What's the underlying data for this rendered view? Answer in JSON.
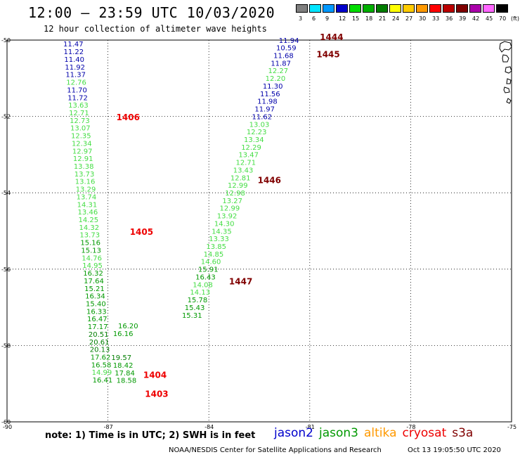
{
  "header": {
    "title": "12:00 – 23:59 UTC 10/03/2020",
    "subtitle": "12 hour collection of altimeter wave heights"
  },
  "color_scale": {
    "unit_label": "(ft)",
    "bins": [
      {
        "label": "3",
        "color": "#7f7f7f"
      },
      {
        "label": "6",
        "color": "#00e5ff"
      },
      {
        "label": "9",
        "color": "#0099ff"
      },
      {
        "label": "12",
        "color": "#0000cc"
      },
      {
        "label": "15",
        "color": "#00dd00"
      },
      {
        "label": "18",
        "color": "#00b000"
      },
      {
        "label": "21",
        "color": "#007d00"
      },
      {
        "label": "24",
        "color": "#ffff00"
      },
      {
        "label": "27",
        "color": "#ffcc00"
      },
      {
        "label": "30",
        "color": "#ff9900"
      },
      {
        "label": "33",
        "color": "#ff0000"
      },
      {
        "label": "36",
        "color": "#bb0000"
      },
      {
        "label": "39",
        "color": "#800000"
      },
      {
        "label": "42",
        "color": "#aa00aa"
      },
      {
        "label": "45",
        "color": "#ff66ff"
      },
      {
        "label": "70",
        "color": "#000000"
      }
    ]
  },
  "map": {
    "lat_ticks": [
      "-50",
      "-52",
      "-54",
      "-56",
      "-58",
      "-60"
    ],
    "lon_ticks": [
      "-90",
      "-87",
      "-84",
      "-81",
      "-78",
      "-75"
    ],
    "tracks": [
      {
        "name": "pass-1406-1403",
        "points": [
          {
            "lon": -88.03,
            "lat": -50.17,
            "v": "11.47",
            "c": "#0000aa"
          },
          {
            "lon": -88.02,
            "lat": -50.37,
            "v": "11.22",
            "c": "#0000aa"
          },
          {
            "lon": -88.0,
            "lat": -50.57,
            "v": "11.40",
            "c": "#0000aa"
          },
          {
            "lon": -87.98,
            "lat": -50.77,
            "v": "11.92",
            "c": "#0000aa"
          },
          {
            "lon": -87.96,
            "lat": -50.97,
            "v": "11.37",
            "c": "#0000aa"
          },
          {
            "lon": -87.94,
            "lat": -51.17,
            "v": "12.76",
            "c": "#44dd44"
          },
          {
            "lon": -87.92,
            "lat": -51.37,
            "v": "11.70",
            "c": "#0000aa"
          },
          {
            "lon": -87.9,
            "lat": -51.57,
            "v": "11.72",
            "c": "#0000aa"
          },
          {
            "lon": -87.88,
            "lat": -51.77,
            "v": "13.63",
            "c": "#44dd44"
          },
          {
            "lon": -87.86,
            "lat": -51.97,
            "v": "12.71",
            "c": "#44dd44"
          },
          {
            "lon": -87.84,
            "lat": -52.17,
            "v": "12.73",
            "c": "#44dd44"
          },
          {
            "lon": -87.82,
            "lat": -52.37,
            "v": "13.07",
            "c": "#44dd44"
          },
          {
            "lon": -87.8,
            "lat": -52.57,
            "v": "12.35",
            "c": "#44dd44"
          },
          {
            "lon": -87.78,
            "lat": -52.77,
            "v": "12.34",
            "c": "#44dd44"
          },
          {
            "lon": -87.76,
            "lat": -52.97,
            "v": "12.97",
            "c": "#44dd44"
          },
          {
            "lon": -87.74,
            "lat": -53.17,
            "v": "12.91",
            "c": "#44dd44"
          },
          {
            "lon": -87.72,
            "lat": -53.37,
            "v": "13.38",
            "c": "#44dd44"
          },
          {
            "lon": -87.7,
            "lat": -53.57,
            "v": "13.73",
            "c": "#44dd44"
          },
          {
            "lon": -87.68,
            "lat": -53.77,
            "v": "13.16",
            "c": "#44dd44"
          },
          {
            "lon": -87.66,
            "lat": -53.97,
            "v": "13.29",
            "c": "#44dd44"
          },
          {
            "lon": -87.64,
            "lat": -54.17,
            "v": "13.74",
            "c": "#44dd44"
          },
          {
            "lon": -87.62,
            "lat": -54.37,
            "v": "14.31",
            "c": "#44dd44"
          },
          {
            "lon": -87.6,
            "lat": -54.57,
            "v": "13.46",
            "c": "#44dd44"
          },
          {
            "lon": -87.58,
            "lat": -54.77,
            "v": "14.25",
            "c": "#44dd44"
          },
          {
            "lon": -87.56,
            "lat": -54.97,
            "v": "14.32",
            "c": "#44dd44"
          },
          {
            "lon": -87.54,
            "lat": -55.17,
            "v": "13.73",
            "c": "#44dd44"
          },
          {
            "lon": -87.52,
            "lat": -55.37,
            "v": "15.16",
            "c": "#009900"
          },
          {
            "lon": -87.5,
            "lat": -55.57,
            "v": "15.13",
            "c": "#009900"
          },
          {
            "lon": -87.48,
            "lat": -55.77,
            "v": "14.76",
            "c": "#44dd44"
          },
          {
            "lon": -87.46,
            "lat": -55.97,
            "v": "14.95",
            "c": "#44dd44"
          },
          {
            "lon": -87.44,
            "lat": -56.17,
            "v": "16.32",
            "c": "#009900"
          },
          {
            "lon": -87.42,
            "lat": -56.37,
            "v": "17.64",
            "c": "#009900"
          },
          {
            "lon": -87.4,
            "lat": -56.57,
            "v": "15.21",
            "c": "#009900"
          },
          {
            "lon": -87.38,
            "lat": -56.77,
            "v": "16.34",
            "c": "#009900"
          },
          {
            "lon": -87.36,
            "lat": -56.97,
            "v": "15.40",
            "c": "#009900"
          },
          {
            "lon": -87.34,
            "lat": -57.17,
            "v": "16.33",
            "c": "#009900"
          },
          {
            "lon": -87.32,
            "lat": -57.37,
            "v": "16.47",
            "c": "#009900"
          },
          {
            "lon": -87.3,
            "lat": -57.57,
            "v": "17.17",
            "c": "#009900"
          },
          {
            "lon": -87.28,
            "lat": -57.77,
            "v": "20.51",
            "c": "#007d00"
          },
          {
            "lon": -87.26,
            "lat": -57.97,
            "v": "20.61",
            "c": "#007d00"
          },
          {
            "lon": -87.24,
            "lat": -58.17,
            "v": "20.13",
            "c": "#007d00"
          },
          {
            "lon": -87.22,
            "lat": -58.37,
            "v": "17.62",
            "c": "#009900"
          },
          {
            "lon": -87.2,
            "lat": -58.57,
            "v": "16.58",
            "c": "#009900"
          },
          {
            "lon": -87.18,
            "lat": -58.77,
            "v": "14.99",
            "c": "#44dd44"
          },
          {
            "lon": -87.16,
            "lat": -58.97,
            "v": "16.41",
            "c": "#009900"
          }
        ]
      },
      {
        "name": "pass-1404-1403-inner",
        "points": [
          {
            "lon": -86.4,
            "lat": -57.55,
            "v": "16.20",
            "c": "#009900"
          },
          {
            "lon": -86.55,
            "lat": -57.75,
            "v": "16.16",
            "c": "#009900"
          },
          {
            "lon": -86.6,
            "lat": -58.38,
            "v": "19.57",
            "c": "#007d00"
          },
          {
            "lon": -86.55,
            "lat": -58.58,
            "v": "18.42",
            "c": "#009900"
          },
          {
            "lon": -86.5,
            "lat": -58.78,
            "v": "17.84",
            "c": "#009900"
          },
          {
            "lon": -86.45,
            "lat": -58.98,
            "v": "18.58",
            "c": "#009900"
          }
        ]
      },
      {
        "name": "pass-1444-1447",
        "points": [
          {
            "lon": -81.62,
            "lat": -50.07,
            "v": "11.94",
            "c": "#0000aa"
          },
          {
            "lon": -81.7,
            "lat": -50.27,
            "v": "10.59",
            "c": "#0000aa"
          },
          {
            "lon": -81.78,
            "lat": -50.47,
            "v": "11.68",
            "c": "#0000aa"
          },
          {
            "lon": -81.86,
            "lat": -50.67,
            "v": "11.87",
            "c": "#0000aa"
          },
          {
            "lon": -81.94,
            "lat": -50.87,
            "v": "12.27",
            "c": "#44dd44"
          },
          {
            "lon": -82.02,
            "lat": -51.07,
            "v": "12.20",
            "c": "#44dd44"
          },
          {
            "lon": -82.1,
            "lat": -51.27,
            "v": "11.30",
            "c": "#0000aa"
          },
          {
            "lon": -82.18,
            "lat": -51.47,
            "v": "11.56",
            "c": "#0000aa"
          },
          {
            "lon": -82.26,
            "lat": -51.67,
            "v": "11.98",
            "c": "#0000aa"
          },
          {
            "lon": -82.34,
            "lat": -51.87,
            "v": "11.97",
            "c": "#0000aa"
          },
          {
            "lon": -82.42,
            "lat": -52.07,
            "v": "11.62",
            "c": "#0000aa"
          },
          {
            "lon": -82.5,
            "lat": -52.27,
            "v": "13.03",
            "c": "#44dd44"
          },
          {
            "lon": -82.58,
            "lat": -52.47,
            "v": "12.23",
            "c": "#44dd44"
          },
          {
            "lon": -82.66,
            "lat": -52.67,
            "v": "13.34",
            "c": "#44dd44"
          },
          {
            "lon": -82.74,
            "lat": -52.87,
            "v": "12.29",
            "c": "#44dd44"
          },
          {
            "lon": -82.82,
            "lat": -53.07,
            "v": "13.47",
            "c": "#44dd44"
          },
          {
            "lon": -82.9,
            "lat": -53.27,
            "v": "12.71",
            "c": "#44dd44"
          },
          {
            "lon": -82.98,
            "lat": -53.47,
            "v": "13.43",
            "c": "#44dd44"
          },
          {
            "lon": -83.06,
            "lat": -53.67,
            "v": "12.81",
            "c": "#44dd44"
          },
          {
            "lon": -83.14,
            "lat": -53.87,
            "v": "12.99",
            "c": "#44dd44"
          },
          {
            "lon": -83.22,
            "lat": -54.07,
            "v": "12.98",
            "c": "#44dd44"
          },
          {
            "lon": -83.3,
            "lat": -54.27,
            "v": "13.27",
            "c": "#44dd44"
          },
          {
            "lon": -83.38,
            "lat": -54.47,
            "v": "12.99",
            "c": "#44dd44"
          },
          {
            "lon": -83.46,
            "lat": -54.67,
            "v": "13.92",
            "c": "#44dd44"
          },
          {
            "lon": -83.54,
            "lat": -54.87,
            "v": "14.30",
            "c": "#44dd44"
          },
          {
            "lon": -83.62,
            "lat": -55.07,
            "v": "14.35",
            "c": "#44dd44"
          },
          {
            "lon": -83.7,
            "lat": -55.27,
            "v": "13.33",
            "c": "#44dd44"
          },
          {
            "lon": -83.78,
            "lat": -55.47,
            "v": "13.85",
            "c": "#44dd44"
          },
          {
            "lon": -83.86,
            "lat": -55.67,
            "v": "14.85",
            "c": "#44dd44"
          },
          {
            "lon": -83.94,
            "lat": -55.87,
            "v": "14.60",
            "c": "#44dd44"
          },
          {
            "lon": -84.02,
            "lat": -56.07,
            "v": "15.91",
            "c": "#009900"
          },
          {
            "lon": -84.1,
            "lat": -56.27,
            "v": "16.43",
            "c": "#009900"
          },
          {
            "lon": -84.18,
            "lat": -56.47,
            "v": "14.08",
            "c": "#44dd44"
          },
          {
            "lon": -84.26,
            "lat": -56.67,
            "v": "14.13",
            "c": "#44dd44"
          },
          {
            "lon": -84.34,
            "lat": -56.87,
            "v": "15.78",
            "c": "#009900"
          },
          {
            "lon": -84.42,
            "lat": -57.07,
            "v": "15.43",
            "c": "#009900"
          },
          {
            "lon": -84.5,
            "lat": -57.27,
            "v": "15.31",
            "c": "#009900"
          }
        ]
      }
    ],
    "pass_labels": [
      {
        "text": "1444",
        "lon": -80.7,
        "lat": -50.0,
        "c": "#800000"
      },
      {
        "text": "1445",
        "lon": -80.8,
        "lat": -50.45,
        "c": "#800000"
      },
      {
        "text": "1406",
        "lon": -86.75,
        "lat": -52.1,
        "c": "#ee0000"
      },
      {
        "text": "1446",
        "lon": -82.55,
        "lat": -53.75,
        "c": "#800000"
      },
      {
        "text": "1405",
        "lon": -86.35,
        "lat": -55.1,
        "c": "#ee0000"
      },
      {
        "text": "1447",
        "lon": -83.4,
        "lat": -56.4,
        "c": "#800000"
      },
      {
        "text": "1404",
        "lon": -85.95,
        "lat": -58.85,
        "c": "#ee0000"
      },
      {
        "text": "1403",
        "lon": -85.9,
        "lat": -59.35,
        "c": "#ee0000"
      }
    ]
  },
  "footer": {
    "note": "note:  1) Time is in UTC;  2) SWH is in feet",
    "legend": [
      {
        "label": "jason2",
        "color": "#0000cc"
      },
      {
        "label": "jason3",
        "color": "#009900"
      },
      {
        "label": "altika",
        "color": "#ff9900"
      },
      {
        "label": "cryosat",
        "color": "#ee0000"
      },
      {
        "label": "s3a",
        "color": "#800000"
      }
    ],
    "credit": "NOAA/NESDIS Center for Satellite Applications and Research",
    "timestamp": "Oct 13 19:05:50 UTC 2020"
  }
}
